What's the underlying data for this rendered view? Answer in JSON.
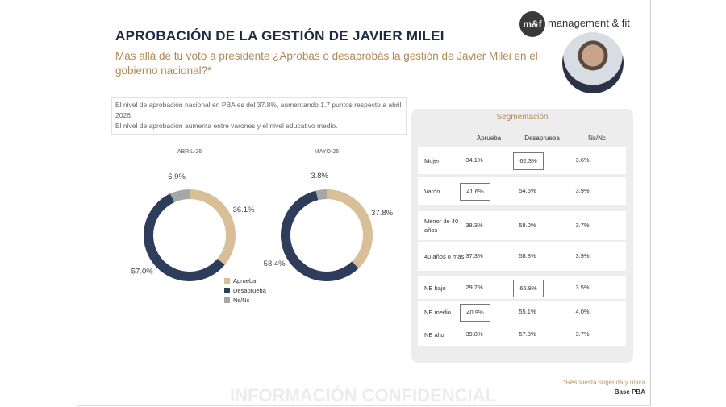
{
  "header": {
    "title": "APROBACIÓN DE LA GESTIÓN DE JAVIER MILEI",
    "subtitle": "Más allá de tu voto a presidente ¿Aprobás o desaprobás la gestión de Javier Milei en el gobierno nacional?*",
    "logo_mark": "m&f",
    "logo_text": "management & fit"
  },
  "summary": [
    "El nivel de aprobación nacional en PBA es del 37.8%, aumentando 1.7 puntos respecto a abril 2026.",
    "El nivel de aprobación aumenta entre varones y el nivel educativo medio."
  ],
  "chart_data": [
    {
      "type": "pie",
      "title": "ABRIL-26",
      "categories": [
        "Aprueba",
        "Desaprueba",
        "Ns/Nc"
      ],
      "values": [
        36.1,
        57.0,
        6.9
      ],
      "value_labels": [
        "36.1%",
        "57.0%",
        "6.9%"
      ],
      "colors": [
        "#d9bf98",
        "#2f3d5c",
        "#a7a7a7"
      ],
      "legend": true
    },
    {
      "type": "pie",
      "title": "MAYO-26",
      "categories": [
        "Aprueba",
        "Desaprueba",
        "Ns/Nc"
      ],
      "values": [
        37.8,
        58.4,
        3.8
      ],
      "value_labels": [
        "37.8%",
        "58.4%",
        "3.8%"
      ],
      "colors": [
        "#d9bf98",
        "#2f3d5c",
        "#a7a7a7"
      ],
      "legend": false
    }
  ],
  "table": {
    "title": "Segmentación",
    "columns": [
      "Aprueba",
      "Desaprueba",
      "Ns/Nc"
    ],
    "groups": [
      [
        {
          "label": "Mujer",
          "cells": [
            "34.1%",
            "62.3%",
            "3.6%"
          ],
          "highlight": 1
        },
        {
          "label": "Varón",
          "cells": [
            "41.6%",
            "54.5%",
            "3.9%"
          ],
          "highlight": 0
        }
      ],
      [
        {
          "label": "Menor de 40 años",
          "cells": [
            "38.3%",
            "58.0%",
            "3.7%"
          ]
        },
        {
          "label": "40 años o más",
          "cells": [
            "37.3%",
            "58.8%",
            "3.9%"
          ]
        }
      ],
      [
        {
          "label": "NE bajo",
          "cells": [
            "29.7%",
            "66.8%",
            "3.5%"
          ],
          "highlight": 1
        },
        {
          "label": "NE medio",
          "cells": [
            "40.9%",
            "55.1%",
            "4.0%"
          ],
          "highlight": 0
        },
        {
          "label": "NE alto",
          "cells": [
            "39.0%",
            "57.3%",
            "3.7%"
          ]
        }
      ]
    ]
  },
  "footer": {
    "note": "*Respuesta sugerida y única",
    "base": "Base PBA",
    "watermark": "INFORMACIÓN CONFIDENCIAL"
  }
}
